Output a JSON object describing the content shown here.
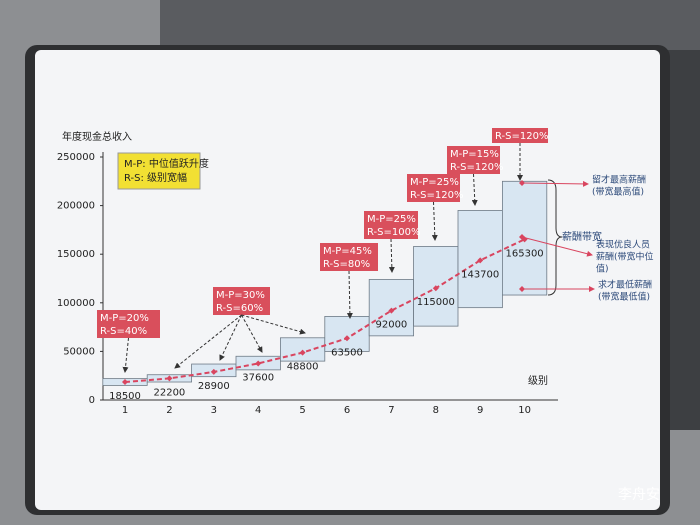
{
  "chart_data": {
    "type": "range-bar",
    "title": "年度现金总收入",
    "x_label": "级别",
    "categories": [
      "1",
      "2",
      "3",
      "4",
      "5",
      "6",
      "7",
      "8",
      "9",
      "10"
    ],
    "mid_values": [
      18500,
      22200,
      28900,
      37600,
      48800,
      63500,
      92000,
      115000,
      143700,
      165300
    ],
    "min_values": [
      15000,
      18500,
      24000,
      31000,
      40000,
      50000,
      66000,
      76000,
      95000,
      108000
    ],
    "max_values": [
      22000,
      26000,
      37000,
      45000,
      64000,
      86000,
      124000,
      158000,
      195000,
      225000
    ],
    "box_color": "#d8e6f2",
    "line_color": "#d9455f",
    "ylim": [
      0,
      250000
    ],
    "yticks": [
      0,
      50000,
      100000,
      150000,
      200000,
      250000
    ],
    "legend_lines": [
      "M-P: 中位值跃升度",
      "R-S: 级别宽幅"
    ],
    "callouts": [
      {
        "lines": [
          "M-P=20%",
          "R-S=40%"
        ]
      },
      {
        "lines": [
          "M-P=30%",
          "R-S=60%"
        ]
      },
      {
        "lines": [
          "M-P=45%",
          "R-S=80%"
        ]
      },
      {
        "lines": [
          "M-P=25%",
          "R-S=100%"
        ]
      },
      {
        "lines": [
          "M-P=25%",
          "R-S=120%"
        ]
      },
      {
        "lines": [
          "M-P=15%",
          "R-S=120%"
        ]
      },
      {
        "lines": [
          "R-S=120%"
        ]
      }
    ],
    "callout_color": "#d94f5c",
    "bracket_label": "薪酬带宽",
    "right_labels": [
      {
        "lines": [
          "留才最高薪酬",
          "(带宽最高值)"
        ]
      },
      {
        "lines": [
          "表现优良人员",
          "薪酬(带宽中位",
          "值)"
        ]
      },
      {
        "lines": [
          "求才最低薪酬",
          "(带宽最低值)"
        ]
      }
    ],
    "watermark": "李舟安"
  }
}
